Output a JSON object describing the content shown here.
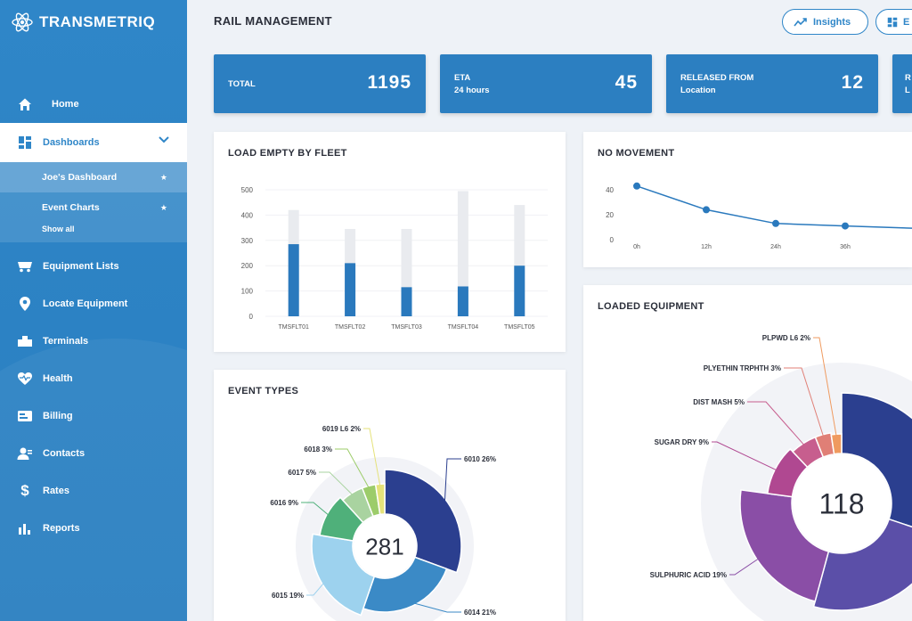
{
  "app": {
    "name": "TRANSMETRIQ"
  },
  "sidebar": {
    "items": [
      {
        "label": "Home",
        "icon": "home-icon"
      },
      {
        "label": "Dashboards",
        "icon": "dashboard-icon"
      },
      {
        "label": "Equipment Lists",
        "icon": "railcar-icon"
      },
      {
        "label": "Locate Equipment",
        "icon": "location-pin-icon"
      },
      {
        "label": "Terminals",
        "icon": "terminal-icon"
      },
      {
        "label": "Health",
        "icon": "heart-pulse-icon"
      },
      {
        "label": "Billing",
        "icon": "billing-icon"
      },
      {
        "label": "Contacts",
        "icon": "contacts-icon"
      },
      {
        "label": "Rates",
        "icon": "dollar-icon"
      },
      {
        "label": "Reports",
        "icon": "bar-chart-icon"
      }
    ],
    "sub_items": [
      {
        "label": "Joe's Dashboard"
      },
      {
        "label": "Event Charts"
      }
    ],
    "show_all": "Show all"
  },
  "header": {
    "title": "RAIL MANAGEMENT",
    "insights_label": "Insights",
    "export_label": "E"
  },
  "stats": [
    {
      "label_1": "TOTAL",
      "label_2": "",
      "value": "1195"
    },
    {
      "label_1": "ETA",
      "label_2": "24 hours",
      "value": "45"
    },
    {
      "label_1": "RELEASED FROM",
      "label_2": "Location",
      "value": "12"
    },
    {
      "label_1": "R",
      "label_2": "L",
      "value": ""
    }
  ],
  "colors": {
    "primary": "#2c7fc1",
    "bar": "#2a79bd",
    "bar_bg": "#e9ebef"
  },
  "cards": {
    "load_empty": {
      "title": "LOAD EMPTY BY FLEET"
    },
    "no_movement": {
      "title": "NO MOVEMENT"
    },
    "event_types": {
      "title": "EVENT TYPES",
      "center": "281"
    },
    "loaded_equipment": {
      "title": "LOADED EQUIPMENT",
      "center": "118"
    }
  },
  "chart_data": [
    {
      "type": "bar",
      "title": "LOAD EMPTY BY FLEET",
      "categories": [
        "TMSFLT01",
        "TMSFLT02",
        "TMSFLT03",
        "TMSFLT04",
        "TMSFLT05"
      ],
      "series": [
        {
          "values": [
            285,
            210,
            115,
            118,
            200
          ]
        },
        {
          "values": [
            420,
            345,
            345,
            495,
            440
          ]
        }
      ],
      "yticks": [
        "0",
        "100",
        "200",
        "300",
        "400",
        "500"
      ],
      "ylim": [
        0,
        500
      ]
    },
    {
      "type": "line",
      "title": "NO MOVEMENT",
      "x": [
        "0h",
        "12h",
        "24h",
        "36h"
      ],
      "values": [
        43,
        24,
        13,
        11
      ],
      "yticks": [
        "0",
        "20",
        "40"
      ],
      "ylim": [
        0,
        45
      ]
    },
    {
      "type": "pie",
      "title": "EVENT TYPES",
      "center": "281",
      "slices": [
        {
          "label": "6010 26%",
          "value": 26,
          "color": "#2b3f8f"
        },
        {
          "label": "6014 21%",
          "value": 21,
          "color": "#3b8ac6"
        },
        {
          "label": "6015 19%",
          "value": 19,
          "color": "#9dd2ee"
        },
        {
          "label": "6016 9%",
          "value": 9,
          "color": "#4fb07a"
        },
        {
          "label": "6017 5%",
          "value": 5,
          "color": "#a9d3a0"
        },
        {
          "label": "6018 3%",
          "value": 3,
          "color": "#9ccc6a"
        },
        {
          "label": "6019 L6 2%",
          "value": 2,
          "color": "#e5e27a"
        }
      ]
    },
    {
      "type": "pie",
      "title": "LOADED EQUIPMENT",
      "center": "118",
      "slices": [
        {
          "label": "",
          "value": 25,
          "color": "#2b3f8f"
        },
        {
          "label": "",
          "value": 20,
          "color": "#5b4fa8"
        },
        {
          "label": "SULPHURIC ACID 19%",
          "value": 19,
          "color": "#8a4ea6"
        },
        {
          "label": "SUGAR DRY 9%",
          "value": 9,
          "color": "#b04891"
        },
        {
          "label": "DIST MASH 5%",
          "value": 5,
          "color": "#c75e8e"
        },
        {
          "label": "PLYETHIN TRPHTH 3%",
          "value": 3,
          "color": "#e07f76"
        },
        {
          "label": "PLPWD L6 2%",
          "value": 2,
          "color": "#ef9a5f"
        }
      ]
    }
  ]
}
